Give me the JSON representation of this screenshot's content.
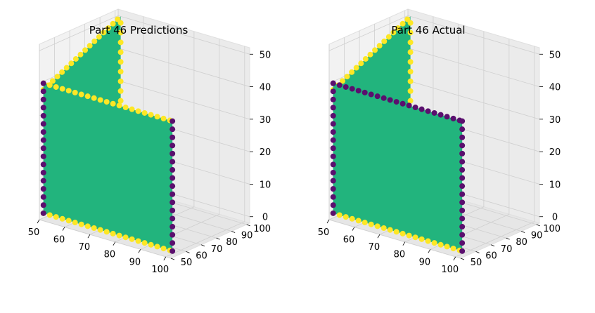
{
  "chart_data": [
    {
      "type": "scatter",
      "projection": "3d",
      "title": "Part 46 Predictions",
      "x_ticks": [
        "50",
        "60",
        "70",
        "80",
        "90",
        "100"
      ],
      "y_ticks": [
        "50",
        "60",
        "70",
        "80",
        "90",
        "100"
      ],
      "z_ticks": [
        "0",
        "10",
        "20",
        "30",
        "40",
        "50"
      ],
      "xlim": [
        50,
        102
      ],
      "ylim": [
        50,
        102
      ],
      "zlim": [
        -2,
        52
      ],
      "grid": true,
      "colors": {
        "interior": "#22b47d",
        "top_edge": "#fde725",
        "side_edge": "#5a0f6e",
        "bottom_edge": "#fde725"
      },
      "surfaces": [
        {
          "name": "front-wall",
          "x_range": [
            51,
            102
          ],
          "y": 51,
          "z_range": [
            0,
            40
          ],
          "interior": "#22b47d",
          "top_edge": "#fde725",
          "side_edges": "#5a0f6e",
          "bottom_edge": "#fde725"
        },
        {
          "name": "side-wall",
          "x": 51,
          "y_range": [
            51,
            102
          ],
          "z_range": [
            0,
            50
          ],
          "interior": "#22b47d",
          "top_edge": "#fde725",
          "side_edges": "#fde725"
        }
      ]
    },
    {
      "type": "scatter",
      "projection": "3d",
      "title": "Part 46 Actual",
      "x_ticks": [
        "50",
        "60",
        "70",
        "80",
        "90",
        "100"
      ],
      "y_ticks": [
        "50",
        "60",
        "70",
        "80",
        "90",
        "100"
      ],
      "z_ticks": [
        "0",
        "10",
        "20",
        "30",
        "40",
        "50"
      ],
      "xlim": [
        50,
        102
      ],
      "ylim": [
        50,
        102
      ],
      "zlim": [
        -2,
        52
      ],
      "grid": true,
      "colors": {
        "interior": "#22b47d",
        "top_edge": "#5a0f6e",
        "side_edge": "#5a0f6e",
        "bottom_edge": "#fde725"
      },
      "surfaces": [
        {
          "name": "front-wall",
          "x_range": [
            51,
            102
          ],
          "y": 51,
          "z_range": [
            0,
            40
          ],
          "interior": "#22b47d",
          "top_edge": "#5a0f6e",
          "side_edges": "#5a0f6e",
          "bottom_edge": "#fde725"
        },
        {
          "name": "side-wall",
          "x": 51,
          "y_range": [
            51,
            102
          ],
          "z_range": [
            0,
            50
          ],
          "interior": "#22b47d",
          "top_edge": "#fde725",
          "side_edges": "#fde725"
        }
      ]
    }
  ]
}
